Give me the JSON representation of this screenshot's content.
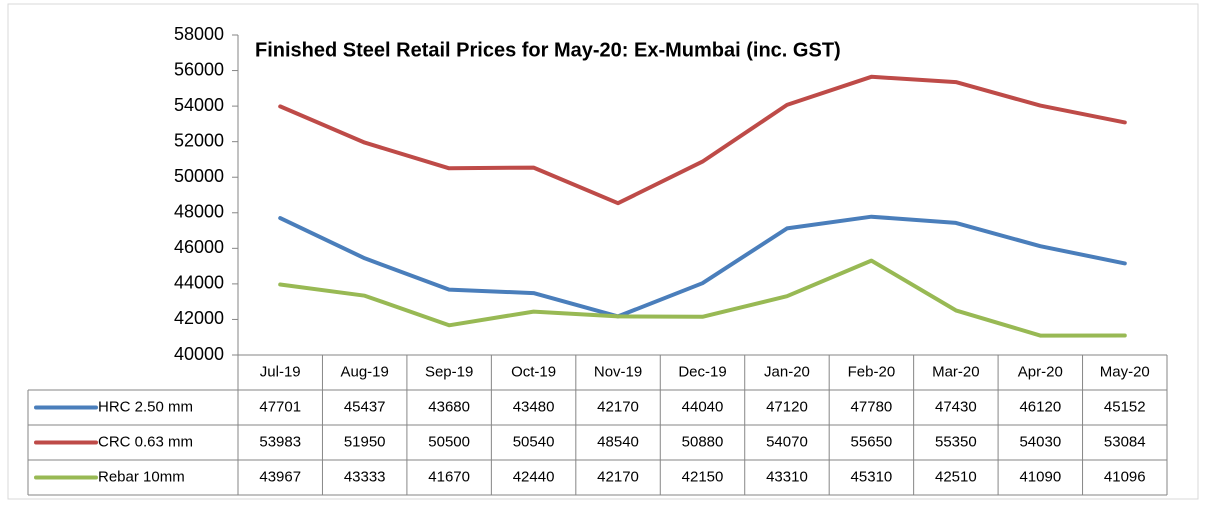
{
  "chart_data": {
    "type": "line",
    "title": "Finished Steel Retail Prices for May-20: Ex-Mumbai (inc. GST)",
    "categories": [
      "Jul-19",
      "Aug-19",
      "Sep-19",
      "Oct-19",
      "Nov-19",
      "Dec-19",
      "Jan-20",
      "Feb-20",
      "Mar-20",
      "Apr-20",
      "May-20"
    ],
    "series": [
      {
        "name": "HRC 2.50 mm",
        "color": "#4a7ebb",
        "values": [
          47701,
          45437,
          43680,
          43480,
          42170,
          44040,
          47120,
          47780,
          47430,
          46120,
          45152
        ]
      },
      {
        "name": "CRC 0.63 mm",
        "color": "#be4b48",
        "values": [
          53983,
          51950,
          50500,
          50540,
          48540,
          50880,
          54070,
          55650,
          55350,
          54030,
          53084
        ]
      },
      {
        "name": "Rebar 10mm",
        "color": "#98b954",
        "values": [
          43967,
          43333,
          41670,
          42440,
          42170,
          42150,
          43310,
          45310,
          42510,
          41090,
          41096
        ]
      }
    ],
    "ylim": [
      40000,
      58000
    ],
    "yticks": [
      40000,
      42000,
      44000,
      46000,
      48000,
      50000,
      52000,
      54000,
      56000,
      58000
    ],
    "grid": false
  }
}
